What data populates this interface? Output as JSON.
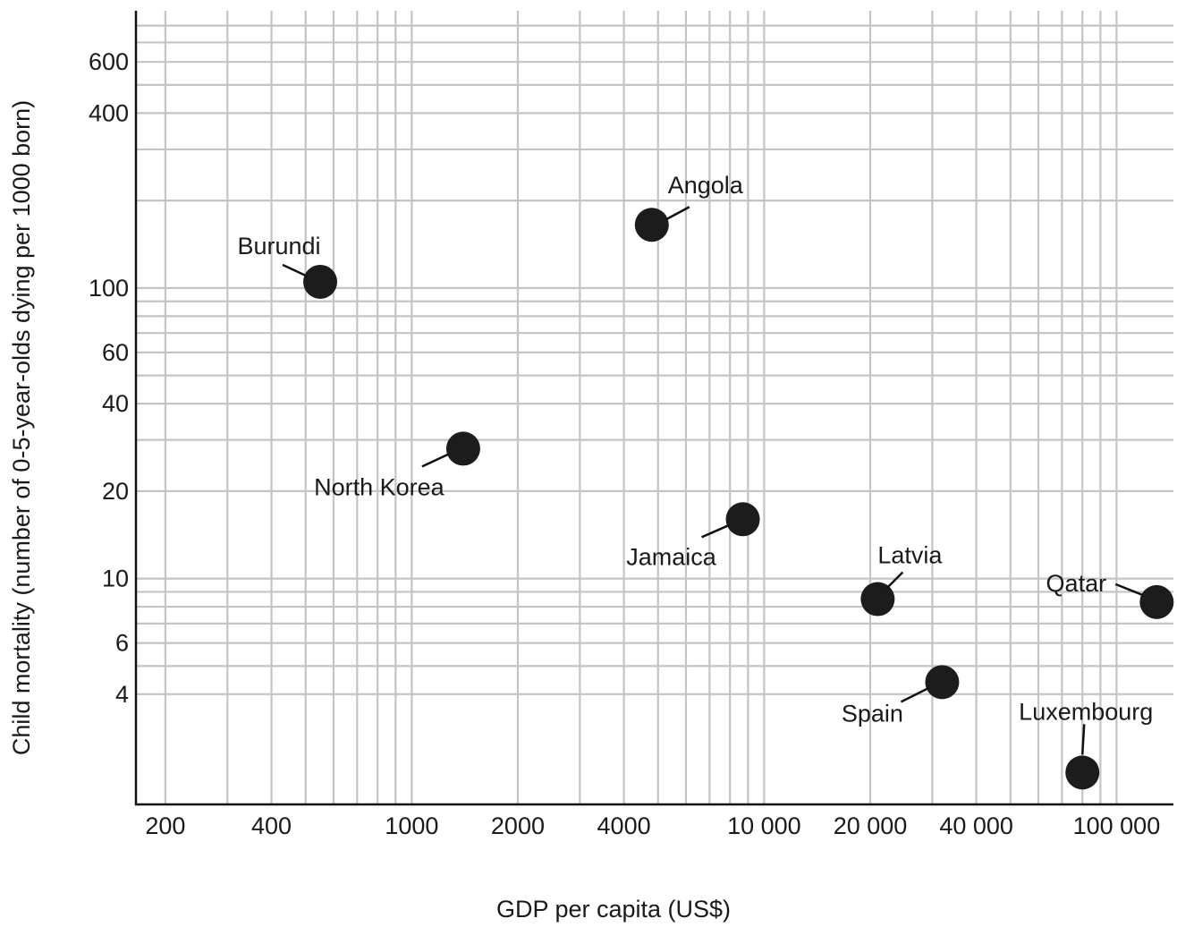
{
  "chart_data": {
    "type": "scatter",
    "xlabel": "GDP per capita (US$)",
    "ylabel": "Child mortality (number of 0-5-year-olds dying per 1000 born)",
    "x_scale": "log",
    "y_scale": "log",
    "xlim": [
      165,
      145000
    ],
    "ylim": [
      1.67,
      900
    ],
    "grid": true,
    "x_ticks": [
      {
        "value": 200,
        "label": "200"
      },
      {
        "value": 400,
        "label": "400"
      },
      {
        "value": 1000,
        "label": "1000"
      },
      {
        "value": 2000,
        "label": "2000"
      },
      {
        "value": 4000,
        "label": "4000"
      },
      {
        "value": 10000,
        "label": "10 000"
      },
      {
        "value": 20000,
        "label": "20 000"
      },
      {
        "value": 40000,
        "label": "40 000"
      },
      {
        "value": 100000,
        "label": "100 000"
      }
    ],
    "y_ticks": [
      {
        "value": 4,
        "label": "4"
      },
      {
        "value": 6,
        "label": "6"
      },
      {
        "value": 10,
        "label": "10"
      },
      {
        "value": 20,
        "label": "20"
      },
      {
        "value": 40,
        "label": "40"
      },
      {
        "value": 60,
        "label": "60"
      },
      {
        "value": 100,
        "label": "100"
      },
      {
        "value": 400,
        "label": "400"
      },
      {
        "value": 600,
        "label": "600"
      }
    ],
    "x_grid": [
      200,
      300,
      400,
      500,
      600,
      700,
      800,
      900,
      1000,
      2000,
      3000,
      4000,
      5000,
      6000,
      7000,
      8000,
      9000,
      10000,
      20000,
      30000,
      40000,
      50000,
      60000,
      70000,
      80000,
      90000,
      100000
    ],
    "y_grid": [
      4,
      5,
      6,
      7,
      8,
      9,
      10,
      20,
      30,
      40,
      50,
      60,
      70,
      80,
      90,
      100,
      200,
      300,
      400,
      500,
      600,
      700,
      800
    ],
    "points": [
      {
        "name": "Burundi",
        "x": 550,
        "y": 105
      },
      {
        "name": "Angola",
        "x": 4800,
        "y": 165
      },
      {
        "name": "North Korea",
        "x": 1400,
        "y": 28
      },
      {
        "name": "Jamaica",
        "x": 8700,
        "y": 16
      },
      {
        "name": "Latvia",
        "x": 21000,
        "y": 8.5
      },
      {
        "name": "Qatar",
        "x": 130000,
        "y": 8.3
      },
      {
        "name": "Spain",
        "x": 32000,
        "y": 4.4
      },
      {
        "name": "Luxembourg",
        "x": 80000,
        "y": 2.15
      }
    ]
  }
}
